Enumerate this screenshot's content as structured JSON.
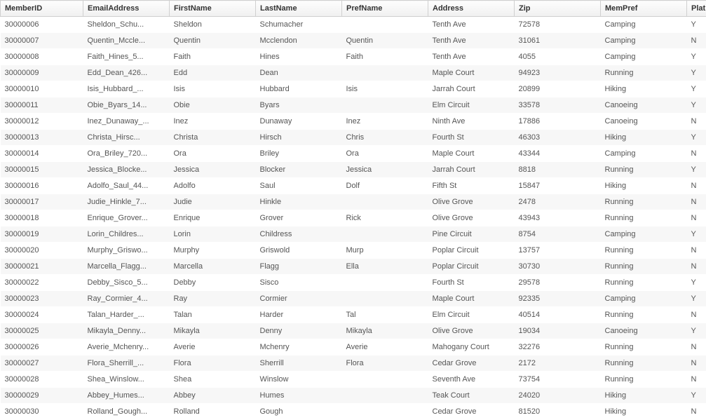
{
  "table": {
    "columns": [
      {
        "key": "memberId",
        "label": "MemberID",
        "class": "col-memberid"
      },
      {
        "key": "email",
        "label": "EmailAddress",
        "class": "col-email"
      },
      {
        "key": "firstName",
        "label": "FirstName",
        "class": "col-firstname"
      },
      {
        "key": "lastName",
        "label": "LastName",
        "class": "col-lastname"
      },
      {
        "key": "prefName",
        "label": "PrefName",
        "class": "col-prefname"
      },
      {
        "key": "address",
        "label": "Address",
        "class": "col-address"
      },
      {
        "key": "zip",
        "label": "Zip",
        "class": "col-zip"
      },
      {
        "key": "memPref",
        "label": "MemPref",
        "class": "col-mempref"
      },
      {
        "key": "plat",
        "label": "Plat",
        "class": "col-plat"
      }
    ],
    "rows": [
      {
        "memberId": "30000006",
        "email": "Sheldon_Schu...",
        "firstName": "Sheldon",
        "lastName": "Schumacher",
        "prefName": "",
        "address": "Tenth Ave",
        "zip": "72578",
        "memPref": "Camping",
        "plat": "Y"
      },
      {
        "memberId": "30000007",
        "email": "Quentin_Mccle...",
        "firstName": "Quentin",
        "lastName": "Mcclendon",
        "prefName": "Quentin",
        "address": "Tenth Ave",
        "zip": "31061",
        "memPref": "Camping",
        "plat": "N"
      },
      {
        "memberId": "30000008",
        "email": "Faith_Hines_5...",
        "firstName": "Faith",
        "lastName": "Hines",
        "prefName": "Faith",
        "address": "Tenth Ave",
        "zip": "4055",
        "memPref": "Camping",
        "plat": "Y"
      },
      {
        "memberId": "30000009",
        "email": "Edd_Dean_426...",
        "firstName": "Edd",
        "lastName": "Dean",
        "prefName": "",
        "address": "Maple Court",
        "zip": "94923",
        "memPref": "Running",
        "plat": "Y"
      },
      {
        "memberId": "30000010",
        "email": "Isis_Hubbard_...",
        "firstName": "Isis",
        "lastName": "Hubbard",
        "prefName": "Isis",
        "address": "Jarrah Court",
        "zip": "20899",
        "memPref": "Hiking",
        "plat": "Y"
      },
      {
        "memberId": "30000011",
        "email": "Obie_Byars_14...",
        "firstName": "Obie",
        "lastName": "Byars",
        "prefName": "",
        "address": "Elm Circuit",
        "zip": "33578",
        "memPref": "Canoeing",
        "plat": "Y"
      },
      {
        "memberId": "30000012",
        "email": "Inez_Dunaway_...",
        "firstName": "Inez",
        "lastName": "Dunaway",
        "prefName": "Inez",
        "address": "Ninth Ave",
        "zip": "17886",
        "memPref": "Canoeing",
        "plat": "N"
      },
      {
        "memberId": "30000013",
        "email": "Christa_Hirsc...",
        "firstName": "Christa",
        "lastName": "Hirsch",
        "prefName": "Chris",
        "address": "Fourth St",
        "zip": "46303",
        "memPref": "Hiking",
        "plat": "Y"
      },
      {
        "memberId": "30000014",
        "email": "Ora_Briley_720...",
        "firstName": "Ora",
        "lastName": "Briley",
        "prefName": "Ora",
        "address": "Maple Court",
        "zip": "43344",
        "memPref": "Camping",
        "plat": "N"
      },
      {
        "memberId": "30000015",
        "email": "Jessica_Blocke...",
        "firstName": "Jessica",
        "lastName": "Blocker",
        "prefName": "Jessica",
        "address": "Jarrah Court",
        "zip": "8818",
        "memPref": "Running",
        "plat": "Y"
      },
      {
        "memberId": "30000016",
        "email": "Adolfo_Saul_44...",
        "firstName": "Adolfo",
        "lastName": "Saul",
        "prefName": "Dolf",
        "address": "Fifth St",
        "zip": "15847",
        "memPref": "Hiking",
        "plat": "N"
      },
      {
        "memberId": "30000017",
        "email": "Judie_Hinkle_7...",
        "firstName": "Judie",
        "lastName": "Hinkle",
        "prefName": "",
        "address": "Olive Grove",
        "zip": "2478",
        "memPref": "Running",
        "plat": "N"
      },
      {
        "memberId": "30000018",
        "email": "Enrique_Grover...",
        "firstName": "Enrique",
        "lastName": "Grover",
        "prefName": "Rick",
        "address": "Olive Grove",
        "zip": "43943",
        "memPref": "Running",
        "plat": "N"
      },
      {
        "memberId": "30000019",
        "email": "Lorin_Childres...",
        "firstName": "Lorin",
        "lastName": "Childress",
        "prefName": "",
        "address": "Pine Circuit",
        "zip": "8754",
        "memPref": "Camping",
        "plat": "Y"
      },
      {
        "memberId": "30000020",
        "email": "Murphy_Griswo...",
        "firstName": "Murphy",
        "lastName": "Griswold",
        "prefName": "Murp",
        "address": "Poplar Circuit",
        "zip": "13757",
        "memPref": "Running",
        "plat": "N"
      },
      {
        "memberId": "30000021",
        "email": "Marcella_Flagg...",
        "firstName": "Marcella",
        "lastName": "Flagg",
        "prefName": "Ella",
        "address": "Poplar Circuit",
        "zip": "30730",
        "memPref": "Running",
        "plat": "N"
      },
      {
        "memberId": "30000022",
        "email": "Debby_Sisco_5...",
        "firstName": "Debby",
        "lastName": "Sisco",
        "prefName": "",
        "address": "Fourth St",
        "zip": "29578",
        "memPref": "Running",
        "plat": "Y"
      },
      {
        "memberId": "30000023",
        "email": "Ray_Cormier_4...",
        "firstName": "Ray",
        "lastName": "Cormier",
        "prefName": "",
        "address": "Maple Court",
        "zip": "92335",
        "memPref": "Camping",
        "plat": "Y"
      },
      {
        "memberId": "30000024",
        "email": "Talan_Harder_...",
        "firstName": "Talan",
        "lastName": "Harder",
        "prefName": "Tal",
        "address": "Elm Circuit",
        "zip": "40514",
        "memPref": "Running",
        "plat": "N"
      },
      {
        "memberId": "30000025",
        "email": "Mikayla_Denny...",
        "firstName": "Mikayla",
        "lastName": "Denny",
        "prefName": "Mikayla",
        "address": "Olive Grove",
        "zip": "19034",
        "memPref": "Canoeing",
        "plat": "Y"
      },
      {
        "memberId": "30000026",
        "email": "Averie_Mchenry...",
        "firstName": "Averie",
        "lastName": "Mchenry",
        "prefName": "Averie",
        "address": "Mahogany Court",
        "zip": "32276",
        "memPref": "Running",
        "plat": "N"
      },
      {
        "memberId": "30000027",
        "email": "Flora_Sherrill_...",
        "firstName": "Flora",
        "lastName": "Sherrill",
        "prefName": "Flora",
        "address": "Cedar Grove",
        "zip": "2172",
        "memPref": "Running",
        "plat": "N"
      },
      {
        "memberId": "30000028",
        "email": "Shea_Winslow...",
        "firstName": "Shea",
        "lastName": "Winslow",
        "prefName": "",
        "address": "Seventh Ave",
        "zip": "73754",
        "memPref": "Running",
        "plat": "N"
      },
      {
        "memberId": "30000029",
        "email": "Abbey_Humes...",
        "firstName": "Abbey",
        "lastName": "Humes",
        "prefName": "",
        "address": "Teak Court",
        "zip": "24020",
        "memPref": "Hiking",
        "plat": "Y"
      },
      {
        "memberId": "30000030",
        "email": "Rolland_Gough...",
        "firstName": "Rolland",
        "lastName": "Gough",
        "prefName": "",
        "address": "Cedar Grove",
        "zip": "81520",
        "memPref": "Hiking",
        "plat": "N"
      }
    ]
  }
}
